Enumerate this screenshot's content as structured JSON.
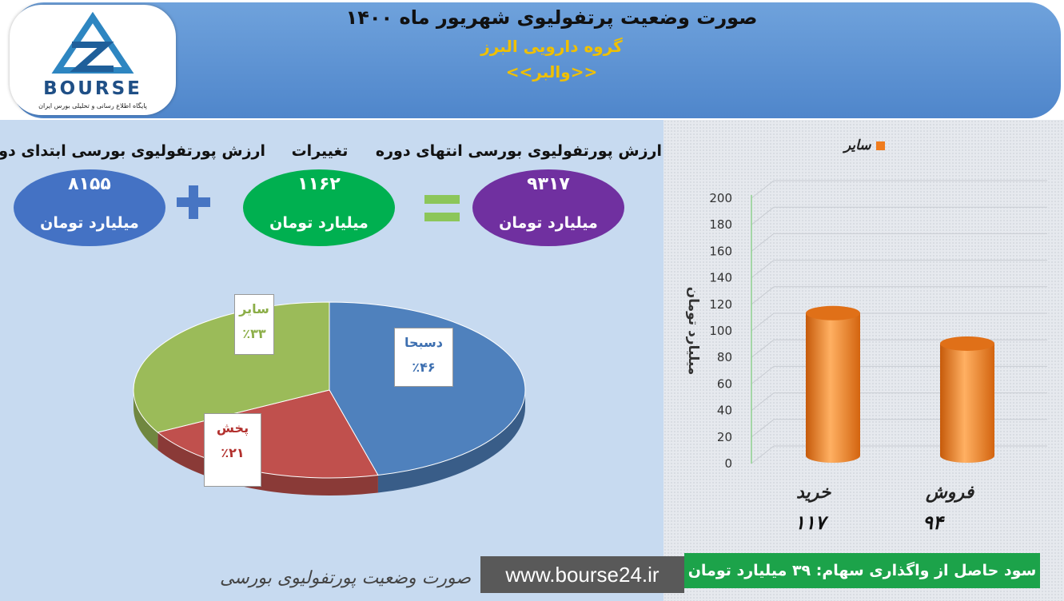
{
  "header": {
    "title": "صورت وضعیت پرتفولیوی شهریور ماه ۱۴۰۰",
    "company": "گروه دارویی البرز",
    "symbol": "<<والبر>>",
    "logo_text": "BOURSE",
    "logo_sub": "پایگاه اطلاع رسانی و تحلیلی بورس ایران"
  },
  "summary": {
    "start_label": "ارزش پورتفولیوی بورسی ابتدای دوره",
    "start_value": "۸۱۵۵",
    "change_label": "تغییرات",
    "change_value": "۱۱۶۲",
    "end_label": "ارزش پورتفولیوی بورسی انتهای دوره",
    "end_value": "۹۳۱۷",
    "unit": "میلیارد تومان",
    "start_color": "#4472c4",
    "change_color": "#00b050",
    "end_color": "#7030a0"
  },
  "footer": {
    "title": "صورت وضعیت پورتفولیوی بورسی",
    "website": "www.bourse24.ir",
    "profit": "سود حاصل از واگذاری سهام: ۳۹ میلیارد تومان"
  },
  "chart_data": [
    {
      "type": "pie",
      "slices": [
        {
          "name": "دسبحا",
          "label": "٪۴۶",
          "value": 46,
          "color": "#4f81bd"
        },
        {
          "name": "پخش",
          "label": "٪۲۱",
          "value": 21,
          "color": "#c0504d"
        },
        {
          "name": "سایر",
          "label": "٪۳۳",
          "value": 33,
          "color": "#9bbb59"
        }
      ]
    },
    {
      "type": "bar",
      "categories": [
        "خرید",
        "فروش"
      ],
      "value_labels": [
        "۱۱۷",
        "۹۴"
      ],
      "series": [
        {
          "name": "سایر",
          "values": [
            117,
            94
          ],
          "color": "#f07c1e"
        }
      ],
      "ylabel": "میلیارد تومان",
      "ylim": [
        0,
        200
      ],
      "yticks": [
        "0",
        "20",
        "40",
        "60",
        "80",
        "100",
        "120",
        "140",
        "160",
        "180",
        "200"
      ],
      "grid": true,
      "legend": "top"
    }
  ]
}
